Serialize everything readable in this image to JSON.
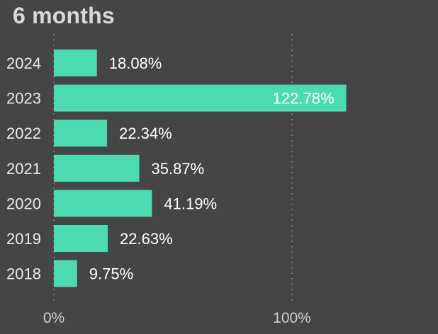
{
  "title": "6 months",
  "chart_data": {
    "type": "bar",
    "orientation": "horizontal",
    "title": "6 months",
    "categories": [
      "2024",
      "2023",
      "2022",
      "2021",
      "2020",
      "2019",
      "2018"
    ],
    "values": [
      18.08,
      122.78,
      22.34,
      35.87,
      41.19,
      22.63,
      9.75
    ],
    "value_labels": [
      "18.08%",
      "122.78%",
      "22.34%",
      "35.87%",
      "41.19%",
      "22.63%",
      "9.75%"
    ],
    "xlim": [
      0,
      100
    ],
    "x_ticks": [
      0,
      100
    ],
    "x_tick_labels": [
      "0%",
      "100%"
    ],
    "grid": true,
    "bar_color": "#4cdbb0",
    "background_color": "#454545",
    "label_color": "#ffffff"
  }
}
